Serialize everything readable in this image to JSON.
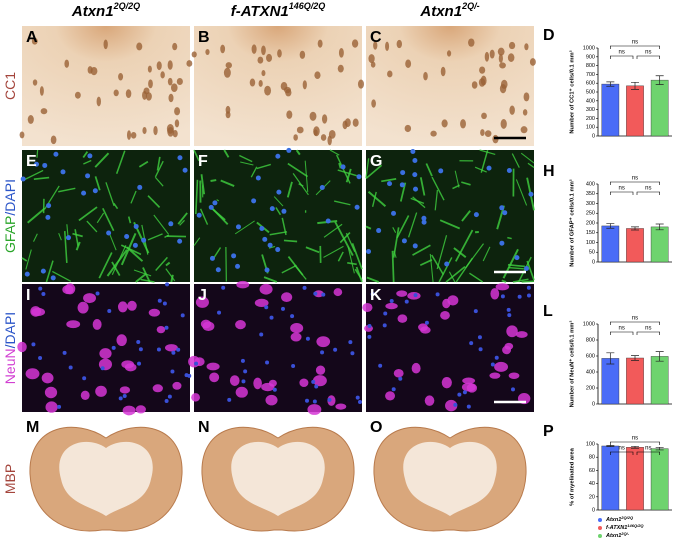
{
  "headers": [
    {
      "text": "Atxn1",
      "sup": "2Q/2Q"
    },
    {
      "text": "f-ATXN1",
      "sup": "146Q/2Q"
    },
    {
      "text": "Atxn1",
      "sup": "2Q/-"
    }
  ],
  "row_labels": [
    {
      "parts": [
        "CC1"
      ],
      "colors": [
        "#a4453c"
      ]
    },
    {
      "parts": [
        "GFAP",
        "/DAPI"
      ],
      "colors": [
        "#2aa52a",
        "#2b55c8"
      ]
    },
    {
      "parts": [
        "NeuN",
        "/DAPI"
      ],
      "colors": [
        "#d23fd2",
        "#2b55c8"
      ]
    },
    {
      "parts": [
        "MBP"
      ],
      "colors": [
        "#a4453c"
      ]
    }
  ],
  "panel_letters": [
    [
      "A",
      "B",
      "C"
    ],
    [
      "E",
      "F",
      "G"
    ],
    [
      "I",
      "J",
      "K"
    ],
    [
      "M",
      "N",
      "O"
    ]
  ],
  "chart_data": [
    {
      "type": "bar",
      "label": "D",
      "y_label": "Number of CC1⁺ cells/0.1 mm²",
      "categories": [
        null,
        null,
        null
      ],
      "values": [
        590,
        570,
        635
      ],
      "errors": [
        25,
        40,
        50
      ],
      "colors": [
        "#4a6cf7",
        "#f25a5a",
        "#6ed36e"
      ],
      "ylim": [
        0,
        1000
      ],
      "yticks": [
        0,
        100,
        200,
        300,
        400,
        500,
        600,
        700,
        800,
        900,
        1000
      ],
      "annotations": [
        "ns",
        "ns",
        "ns"
      ]
    },
    {
      "type": "bar",
      "label": "H",
      "y_label": "Number of GFAP⁺ cells/0.1 mm²",
      "categories": [
        null,
        null,
        null
      ],
      "values": [
        185,
        172,
        180
      ],
      "errors": [
        12,
        8,
        15
      ],
      "colors": [
        "#4a6cf7",
        "#f25a5a",
        "#6ed36e"
      ],
      "ylim": [
        0,
        400
      ],
      "yticks": [
        0,
        50,
        100,
        150,
        200,
        250,
        300,
        350,
        400
      ],
      "annotations": [
        "ns",
        "ns",
        "ns"
      ]
    },
    {
      "type": "bar",
      "label": "L",
      "y_label": "Number of NeuN⁺ cells/0.1 mm²",
      "categories": [
        null,
        null,
        null
      ],
      "values": [
        570,
        575,
        595
      ],
      "errors": [
        70,
        30,
        60
      ],
      "colors": [
        "#4a6cf7",
        "#f25a5a",
        "#6ed36e"
      ],
      "ylim": [
        0,
        1000
      ],
      "yticks": [
        0,
        200,
        400,
        600,
        800,
        1000
      ],
      "annotations": [
        "ns",
        "ns",
        "ns"
      ]
    },
    {
      "type": "bar",
      "label": "P",
      "y_label": "% of myelinated area",
      "categories": [
        null,
        null,
        null
      ],
      "values": [
        97,
        95,
        93
      ],
      "errors": [
        1,
        1.5,
        2
      ],
      "colors": [
        "#4a6cf7",
        "#f25a5a",
        "#6ed36e"
      ],
      "ylim": [
        0,
        100
      ],
      "yticks": [
        0,
        20,
        40,
        60,
        80,
        100
      ],
      "annotations": [
        "ns",
        "ns",
        "ns"
      ]
    }
  ],
  "legend": [
    {
      "name": "Atxn1",
      "sup": "2Q/2Q",
      "color": "#4a6cf7"
    },
    {
      "name": "f-ATXN1",
      "sup": "146Q/2Q",
      "color": "#f25a5a"
    },
    {
      "name": "Atxn1",
      "sup": "2Q/-",
      "color": "#6ed36e"
    }
  ]
}
